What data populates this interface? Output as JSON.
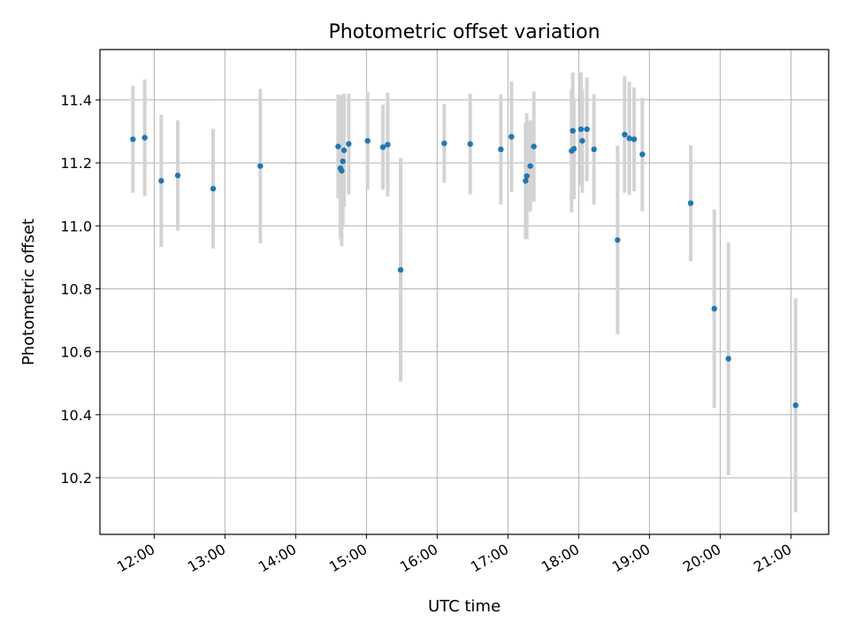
{
  "chart_data": {
    "type": "scatter",
    "title": "Photometric offset variation",
    "xlabel": "UTC time",
    "ylabel": "Photometric offset",
    "x_is_time": true,
    "x_range": [
      "11:14",
      "21:32"
    ],
    "ylim": [
      10.02,
      11.56
    ],
    "grid": true,
    "xticks": [
      "12:00",
      "13:00",
      "14:00",
      "15:00",
      "16:00",
      "17:00",
      "18:00",
      "19:00",
      "20:00",
      "21:00"
    ],
    "yticks": [
      "10.2",
      "10.4",
      "10.6",
      "10.8",
      "11.0",
      "11.2",
      "11.4"
    ],
    "marker_color": "#1f77b4",
    "errorbar_color": "#d3d3d3",
    "series": [
      {
        "points": [
          {
            "x": "11:42",
            "y": 11.275,
            "err": 0.17
          },
          {
            "x": "11:52",
            "y": 11.28,
            "err": 0.185
          },
          {
            "x": "12:06",
            "y": 11.143,
            "err": 0.21
          },
          {
            "x": "12:20",
            "y": 11.16,
            "err": 0.175
          },
          {
            "x": "12:50",
            "y": 11.118,
            "err": 0.19
          },
          {
            "x": "13:30",
            "y": 11.19,
            "err": 0.245
          },
          {
            "x": "14:36",
            "y": 11.252,
            "err": 0.165
          },
          {
            "x": "14:38",
            "y": 11.183,
            "err": 0.225
          },
          {
            "x": "14:39",
            "y": 11.175,
            "err": 0.24
          },
          {
            "x": "14:40",
            "y": 11.205,
            "err": 0.205
          },
          {
            "x": "14:41",
            "y": 11.24,
            "err": 0.18
          },
          {
            "x": "14:45",
            "y": 11.26,
            "err": 0.16
          },
          {
            "x": "15:01",
            "y": 11.27,
            "err": 0.155
          },
          {
            "x": "15:14",
            "y": 11.25,
            "err": 0.135
          },
          {
            "x": "15:18",
            "y": 11.258,
            "err": 0.165
          },
          {
            "x": "15:29",
            "y": 10.86,
            "err": 0.355
          },
          {
            "x": "16:06",
            "y": 11.262,
            "err": 0.125
          },
          {
            "x": "16:28",
            "y": 11.26,
            "err": 0.16
          },
          {
            "x": "16:54",
            "y": 11.243,
            "err": 0.175
          },
          {
            "x": "17:03",
            "y": 11.283,
            "err": 0.175
          },
          {
            "x": "17:15",
            "y": 11.143,
            "err": 0.185
          },
          {
            "x": "17:16",
            "y": 11.158,
            "err": 0.2
          },
          {
            "x": "17:19",
            "y": 11.19,
            "err": 0.145
          },
          {
            "x": "17:22",
            "y": 11.252,
            "err": 0.175
          },
          {
            "x": "17:54",
            "y": 11.238,
            "err": 0.195
          },
          {
            "x": "17:55",
            "y": 11.302,
            "err": 0.185
          },
          {
            "x": "17:56",
            "y": 11.245,
            "err": 0.16
          },
          {
            "x": "18:02",
            "y": 11.307,
            "err": 0.18
          },
          {
            "x": "18:03",
            "y": 11.27,
            "err": 0.165
          },
          {
            "x": "18:07",
            "y": 11.307,
            "err": 0.165
          },
          {
            "x": "18:13",
            "y": 11.243,
            "err": 0.175
          },
          {
            "x": "18:33",
            "y": 10.955,
            "err": 0.3
          },
          {
            "x": "18:39",
            "y": 11.29,
            "err": 0.185
          },
          {
            "x": "18:43",
            "y": 11.278,
            "err": 0.18
          },
          {
            "x": "18:47",
            "y": 11.275,
            "err": 0.165
          },
          {
            "x": "18:54",
            "y": 11.227,
            "err": 0.18
          },
          {
            "x": "19:35",
            "y": 11.072,
            "err": 0.185
          },
          {
            "x": "19:55",
            "y": 10.737,
            "err": 0.315
          },
          {
            "x": "20:07",
            "y": 10.578,
            "err": 0.37
          },
          {
            "x": "21:04",
            "y": 10.43,
            "err": 0.34
          }
        ]
      }
    ]
  }
}
